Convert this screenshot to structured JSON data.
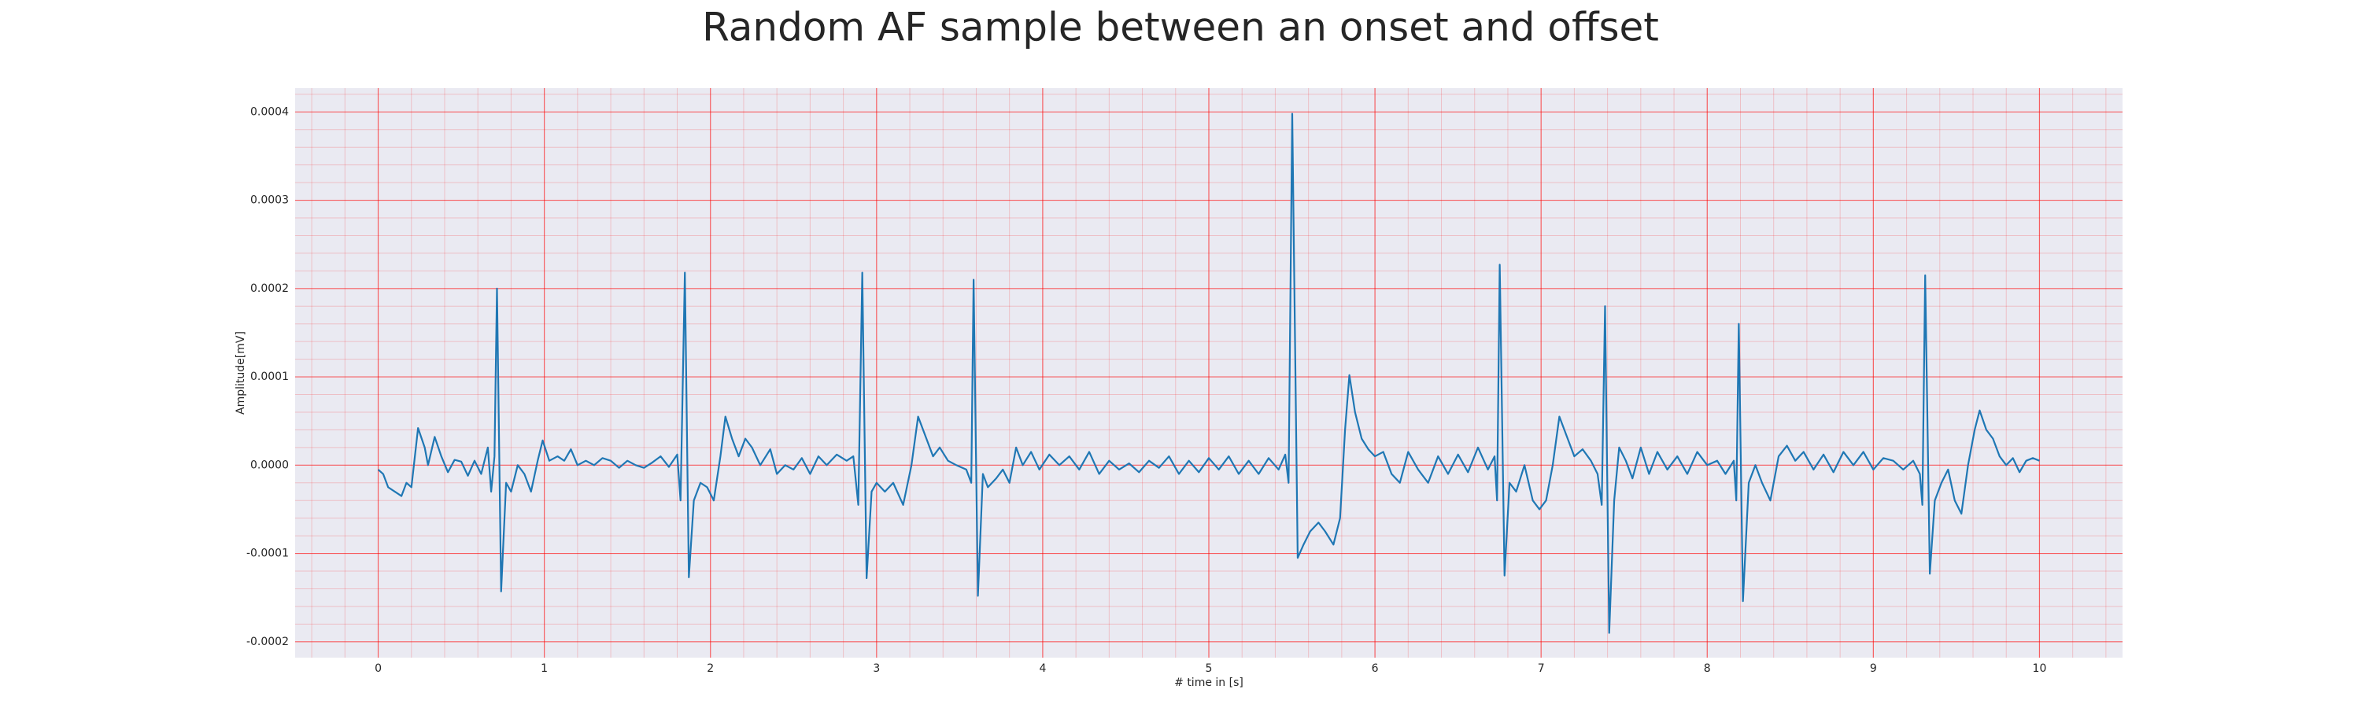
{
  "chart_data": {
    "type": "line",
    "title": "Random AF sample between an onset and offset",
    "x_label": "# time in [s]",
    "y_label": "Amplitude[mV]",
    "color": "#1f77b4",
    "grid": true,
    "minor_grid": true,
    "grid_color": "#ff0000",
    "background": "#eaeaf2",
    "xlim": [
      -0.5,
      10.5
    ],
    "ylim": [
      -0.000218,
      0.000427
    ],
    "xticks": [
      0,
      1,
      2,
      3,
      4,
      5,
      6,
      7,
      8,
      9,
      10
    ],
    "yticks": [
      -0.0002,
      -0.0001,
      {
        "value": 0,
        "label": "0.0000"
      },
      0.0001,
      0.0002,
      0.0003,
      0.0004
    ],
    "x": [
      0.0,
      0.03,
      0.06,
      0.1,
      0.14,
      0.17,
      0.2,
      0.24,
      0.28,
      0.3,
      0.34,
      0.38,
      0.42,
      0.46,
      0.5,
      0.54,
      0.58,
      0.62,
      0.66,
      0.68,
      0.7,
      0.715,
      0.74,
      0.77,
      0.8,
      0.84,
      0.88,
      0.92,
      0.96,
      0.99,
      1.03,
      1.08,
      1.12,
      1.16,
      1.2,
      1.25,
      1.3,
      1.35,
      1.4,
      1.45,
      1.5,
      1.55,
      1.6,
      1.65,
      1.7,
      1.75,
      1.8,
      1.82,
      1.846,
      1.87,
      1.9,
      1.94,
      1.98,
      2.02,
      2.06,
      2.09,
      2.13,
      2.17,
      2.21,
      2.25,
      2.3,
      2.36,
      2.4,
      2.45,
      2.5,
      2.55,
      2.6,
      2.65,
      2.7,
      2.76,
      2.82,
      2.86,
      2.89,
      2.914,
      2.94,
      2.97,
      3.0,
      3.05,
      3.1,
      3.16,
      3.21,
      3.25,
      3.3,
      3.34,
      3.38,
      3.43,
      3.48,
      3.54,
      3.57,
      3.584,
      3.61,
      3.64,
      3.67,
      3.72,
      3.76,
      3.8,
      3.84,
      3.88,
      3.93,
      3.98,
      4.04,
      4.1,
      4.16,
      4.22,
      4.28,
      4.34,
      4.4,
      4.46,
      4.52,
      4.58,
      4.64,
      4.7,
      4.76,
      4.82,
      4.88,
      4.94,
      5.0,
      5.06,
      5.12,
      5.18,
      5.24,
      5.3,
      5.36,
      5.42,
      5.46,
      5.48,
      5.502,
      5.535,
      5.57,
      5.61,
      5.66,
      5.7,
      5.75,
      5.79,
      5.82,
      5.846,
      5.88,
      5.92,
      5.96,
      6.0,
      6.05,
      6.1,
      6.15,
      6.2,
      6.26,
      6.32,
      6.38,
      6.44,
      6.5,
      6.56,
      6.62,
      6.68,
      6.72,
      6.735,
      6.751,
      6.78,
      6.81,
      6.85,
      6.9,
      6.95,
      6.99,
      7.03,
      7.07,
      7.11,
      7.16,
      7.2,
      7.25,
      7.3,
      7.34,
      7.365,
      7.385,
      7.41,
      7.44,
      7.47,
      7.51,
      7.55,
      7.6,
      7.65,
      7.7,
      7.76,
      7.82,
      7.88,
      7.94,
      8.0,
      8.06,
      8.11,
      8.16,
      8.175,
      8.19,
      8.215,
      8.25,
      8.29,
      8.33,
      8.38,
      8.43,
      8.48,
      8.53,
      8.58,
      8.64,
      8.7,
      8.76,
      8.82,
      8.88,
      8.94,
      9.0,
      9.06,
      9.12,
      9.18,
      9.24,
      9.28,
      9.295,
      9.312,
      9.34,
      9.37,
      9.41,
      9.45,
      9.49,
      9.53,
      9.57,
      9.61,
      9.64,
      9.68,
      9.72,
      9.76,
      9.8,
      9.84,
      9.88,
      9.92,
      9.96,
      10.0
    ],
    "values": [
      -5e-06,
      -1e-05,
      -2.5e-05,
      -3e-05,
      -3.5e-05,
      -2e-05,
      -2.5e-05,
      4.2e-05,
      2e-05,
      0.0,
      3.2e-05,
      1e-05,
      -8e-06,
      6e-06,
      4e-06,
      -1.2e-05,
      5e-06,
      -1e-05,
      2e-05,
      -3e-05,
      1e-05,
      0.0002,
      -0.000143,
      -2e-05,
      -3e-05,
      0.0,
      -1e-05,
      -3e-05,
      5e-06,
      2.8e-05,
      5e-06,
      1e-05,
      5e-06,
      1.8e-05,
      0.0,
      5e-06,
      0.0,
      8e-06,
      5e-06,
      -3e-06,
      5e-06,
      0.0,
      -3e-06,
      3e-06,
      1e-05,
      -2e-06,
      1.2e-05,
      -4e-05,
      0.000218,
      -0.000127,
      -4e-05,
      -2e-05,
      -2.5e-05,
      -4e-05,
      1e-05,
      5.5e-05,
      3e-05,
      1e-05,
      3e-05,
      2e-05,
      0.0,
      1.8e-05,
      -1e-05,
      0.0,
      -5e-06,
      8e-06,
      -1e-05,
      1e-05,
      0.0,
      1.2e-05,
      5e-06,
      1e-05,
      -4.5e-05,
      0.000218,
      -0.000128,
      -3e-05,
      -2e-05,
      -3e-05,
      -2e-05,
      -4.5e-05,
      0.0,
      5.5e-05,
      3e-05,
      1e-05,
      2e-05,
      5e-06,
      0.0,
      -5e-06,
      -2e-05,
      0.00021,
      -0.000148,
      -1e-05,
      -2.5e-05,
      -1.5e-05,
      -5e-06,
      -2e-05,
      2e-05,
      0.0,
      1.5e-05,
      -5e-06,
      1.2e-05,
      0.0,
      1e-05,
      -5e-06,
      1.5e-05,
      -1e-05,
      5e-06,
      -5e-06,
      2e-06,
      -8e-06,
      5e-06,
      -3e-06,
      1e-05,
      -1e-05,
      5e-06,
      -8e-06,
      8e-06,
      -5e-06,
      1e-05,
      -1e-05,
      5e-06,
      -1e-05,
      8e-06,
      -5e-06,
      1.2e-05,
      -2e-05,
      0.000398,
      -0.000105,
      -9e-05,
      -7.5e-05,
      -6.5e-05,
      -7.5e-05,
      -9e-05,
      -6e-05,
      4e-05,
      0.000102,
      6e-05,
      3e-05,
      1.8e-05,
      1e-05,
      1.5e-05,
      -1e-05,
      -2e-05,
      1.5e-05,
      -5e-06,
      -2e-05,
      1e-05,
      -1e-05,
      1.2e-05,
      -8e-06,
      2e-05,
      -5e-06,
      1e-05,
      -4e-05,
      0.000227,
      -0.000125,
      -2e-05,
      -3e-05,
      0.0,
      -4e-05,
      -5e-05,
      -4e-05,
      0.0,
      5.5e-05,
      3e-05,
      1e-05,
      1.8e-05,
      5e-06,
      -1e-05,
      -4.5e-05,
      0.00018,
      -0.00019,
      -4e-05,
      2e-05,
      5e-06,
      -1.5e-05,
      2e-05,
      -1e-05,
      1.5e-05,
      -5e-06,
      1e-05,
      -1e-05,
      1.5e-05,
      0.0,
      5e-06,
      -1e-05,
      5e-06,
      -4e-05,
      0.00016,
      -0.000154,
      -2e-05,
      0.0,
      -2e-05,
      -4e-05,
      1e-05,
      2.2e-05,
      5e-06,
      1.5e-05,
      -5e-06,
      1.2e-05,
      -8e-06,
      1.5e-05,
      0.0,
      1.5e-05,
      -5e-06,
      8e-06,
      5e-06,
      -5e-06,
      5e-06,
      -1e-05,
      -4.5e-05,
      0.000215,
      -0.000123,
      -4e-05,
      -2e-05,
      -5e-06,
      -4e-05,
      -5.5e-05,
      0.0,
      4e-05,
      6.2e-05,
      4e-05,
      3e-05,
      1e-05,
      0.0,
      8e-06,
      -8e-06,
      5e-06,
      8e-06,
      5e-06
    ]
  }
}
